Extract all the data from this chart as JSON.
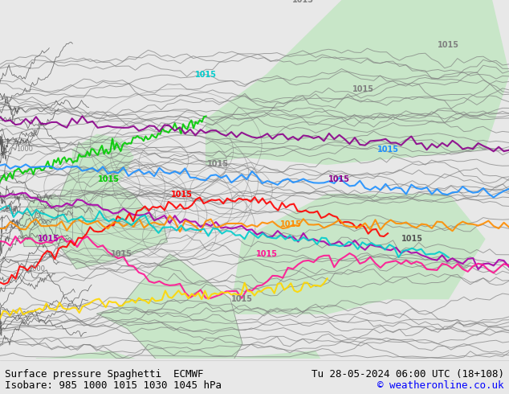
{
  "title_left": "Surface pressure Spaghetti  ECMWF",
  "title_right": "Tu 28-05-2024 06:00 UTC (18+108)",
  "subtitle": "Isobare: 985 1000 1015 1030 1045 hPa",
  "copyright": "© weatheronline.co.uk",
  "bg_color": "#e8e8e8",
  "map_bg": "#f0f0f0",
  "land_color": "#c8e6c8",
  "sea_color": "#f0f0f0",
  "text_color": "#000000",
  "bottom_bar_color": "#ffffff",
  "title_font_size": 9,
  "subtitle_font_size": 9,
  "isobar_colors": {
    "985": "#808080",
    "1000": "#808080",
    "1015_members": [
      "#808080",
      "#808080",
      "#808080",
      "#808080",
      "#808080"
    ],
    "1030": "#808080",
    "1045": "#808080",
    "highlight_colors": [
      "#ff00ff",
      "#ff0080",
      "#ff0000",
      "#ff8000",
      "#ffff00",
      "#00ff00",
      "#00ffff",
      "#0080ff",
      "#8000ff"
    ]
  },
  "colored_line_colors": [
    "#aa00aa",
    "#ff1493",
    "#ff0000",
    "#ff8c00",
    "#ffd700",
    "#00cc00",
    "#00cccc",
    "#1e90ff",
    "#8b008b"
  ],
  "figsize": [
    6.34,
    4.9
  ],
  "dpi": 100
}
